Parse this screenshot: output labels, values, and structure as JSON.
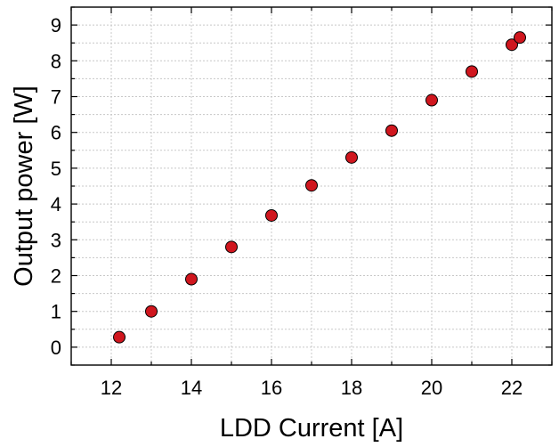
{
  "chart_data": {
    "type": "scatter",
    "xlabel": "LDD Current [A]",
    "ylabel": "Output power [W]",
    "xlim": [
      11,
      23
    ],
    "ylim": [
      -0.5,
      9.5
    ],
    "xticks": [
      12,
      14,
      16,
      18,
      20,
      22
    ],
    "yticks": [
      0,
      1,
      2,
      3,
      4,
      5,
      6,
      7,
      8,
      9
    ],
    "grid": true,
    "legend": "none",
    "marker_color": "#d0161e",
    "series": [
      {
        "x": [
          12.2,
          13.0,
          14.0,
          15.0,
          16.0,
          17.0,
          18.0,
          19.0,
          20.0,
          21.0,
          22.0,
          22.2
        ],
        "y": [
          0.28,
          1.0,
          1.9,
          2.8,
          3.68,
          4.52,
          5.3,
          6.05,
          6.9,
          7.7,
          8.45,
          8.65
        ]
      }
    ]
  }
}
